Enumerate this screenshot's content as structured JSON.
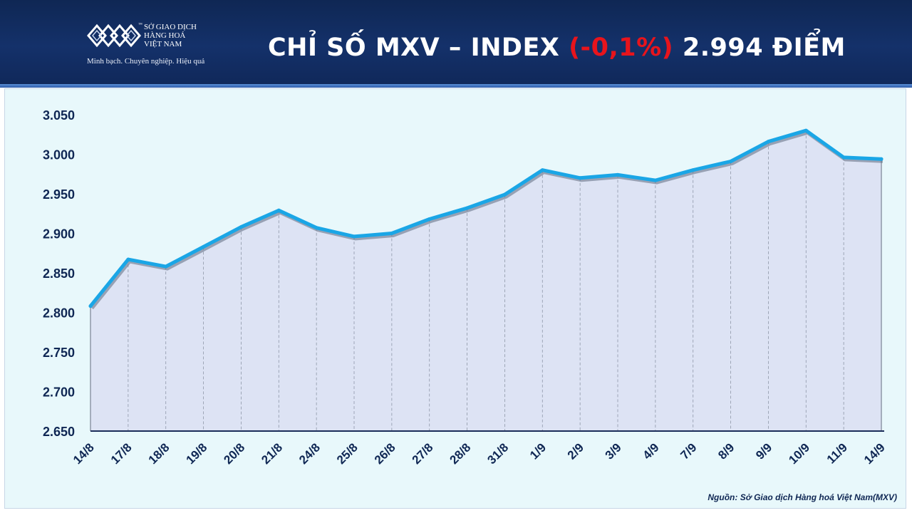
{
  "header": {
    "logo": {
      "name_lines": [
        "SỞ GIAO DỊCH",
        "HÀNG HOÁ",
        "VIỆT NAM"
      ],
      "trademark": "™",
      "tagline": "Minh bạch. Chuyên nghiệp. Hiệu quả"
    },
    "title": {
      "prefix": "CHỈ SỐ MXV – INDEX",
      "change": "(-0,1%)",
      "value": "2.994 ĐIỂM"
    }
  },
  "colors": {
    "header_bg": "#14316a",
    "line": "#1aa6e6",
    "area_fill": "#dde3f4",
    "change_red": "#e8141c",
    "axis_text": "#0f2754"
  },
  "chart_data": {
    "type": "area",
    "categories": [
      "14/8",
      "17/8",
      "18/8",
      "19/8",
      "20/8",
      "21/8",
      "24/8",
      "25/8",
      "26/8",
      "27/8",
      "28/8",
      "31/8",
      "1/9",
      "2/9",
      "3/9",
      "4/9",
      "7/9",
      "8/9",
      "9/9",
      "10/9",
      "11/9",
      "14/9"
    ],
    "series": [
      {
        "values": [
          2808,
          2867,
          2858,
          2883,
          2908,
          2929,
          2907,
          2896,
          2900,
          2918,
          2932,
          2949,
          2980,
          2970,
          2974,
          2967,
          2980,
          2991,
          3016,
          3030,
          2996,
          2994
        ]
      }
    ],
    "y_ticks": [
      "3.050",
      "3.000",
      "2.950",
      "2.900",
      "2.850",
      "2.800",
      "2.750",
      "2.700",
      "2.650"
    ],
    "ylim": [
      2650,
      3050
    ],
    "vertical_gridlines": true,
    "gridline_style": "dashed"
  },
  "source": "Nguồn: Sở Giao dịch Hàng hoá Việt Nam(MXV)"
}
